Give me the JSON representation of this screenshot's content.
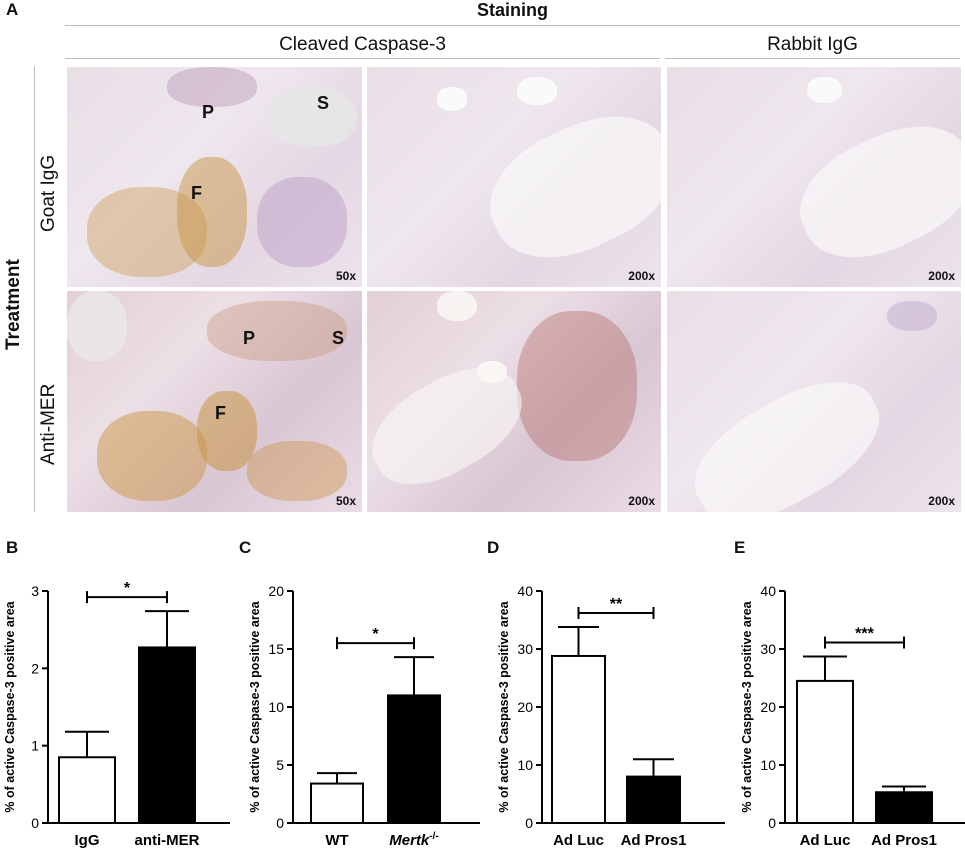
{
  "figure": {
    "panel_letters": [
      "A",
      "B",
      "C",
      "D",
      "E"
    ],
    "staining_header": "Staining",
    "col_headers": [
      "Cleaved Caspase-3",
      "Rabbit IgG"
    ],
    "treatment_label": "Treatment",
    "row_labels": [
      "Goat IgG",
      "Anti-MER"
    ],
    "tiles": [
      {
        "mag": "50x",
        "labels": [
          "P",
          "S",
          "F"
        ]
      },
      {
        "mag": "200x",
        "labels": []
      },
      {
        "mag": "200x",
        "labels": []
      },
      {
        "mag": "50x",
        "labels": [
          "P",
          "S",
          "F"
        ]
      },
      {
        "mag": "200x",
        "labels": []
      },
      {
        "mag": "200x",
        "labels": []
      }
    ]
  },
  "chart_data": [
    {
      "type": "bar",
      "panel": "B",
      "ylabel": "% of active Caspase-3 positive area",
      "ylim": [
        0,
        3
      ],
      "yticks": [
        "0",
        "1",
        "2",
        "3"
      ],
      "categories": [
        "IgG",
        "anti-MER"
      ],
      "values": [
        0.85,
        2.27
      ],
      "errors": [
        0.33,
        0.47
      ],
      "fills": [
        "#ffffff",
        "#000000"
      ],
      "significance": "*"
    },
    {
      "type": "bar",
      "panel": "C",
      "ylabel": "% of active Caspase-3 positive area",
      "ylim": [
        0,
        20
      ],
      "yticks": [
        "0",
        "5",
        "10",
        "15",
        "20"
      ],
      "categories": [
        "WT",
        "Mertk"
      ],
      "category_superscripts": [
        "",
        "-/-"
      ],
      "values": [
        3.4,
        11.0
      ],
      "errors": [
        0.9,
        3.3
      ],
      "fills": [
        "#ffffff",
        "#000000"
      ],
      "significance": "*"
    },
    {
      "type": "bar",
      "panel": "D",
      "ylabel": "% of active Caspase-3 positive area",
      "ylim": [
        0,
        40
      ],
      "yticks": [
        "0",
        "10",
        "20",
        "30",
        "40"
      ],
      "categories": [
        "Ad Luc",
        "Ad Pros1"
      ],
      "values": [
        28.8,
        8.0
      ],
      "errors": [
        5.0,
        3.0
      ],
      "fills": [
        "#ffffff",
        "#000000"
      ],
      "significance": "**"
    },
    {
      "type": "bar",
      "panel": "E",
      "ylabel": "% of active Caspase-3 positive area",
      "ylim": [
        0,
        40
      ],
      "yticks": [
        "0",
        "10",
        "20",
        "30",
        "40"
      ],
      "categories": [
        "Ad Luc",
        "Ad Pros1"
      ],
      "values": [
        24.5,
        5.3
      ],
      "errors": [
        4.2,
        1.0
      ],
      "fills": [
        "#ffffff",
        "#000000"
      ],
      "significance": "***"
    }
  ]
}
